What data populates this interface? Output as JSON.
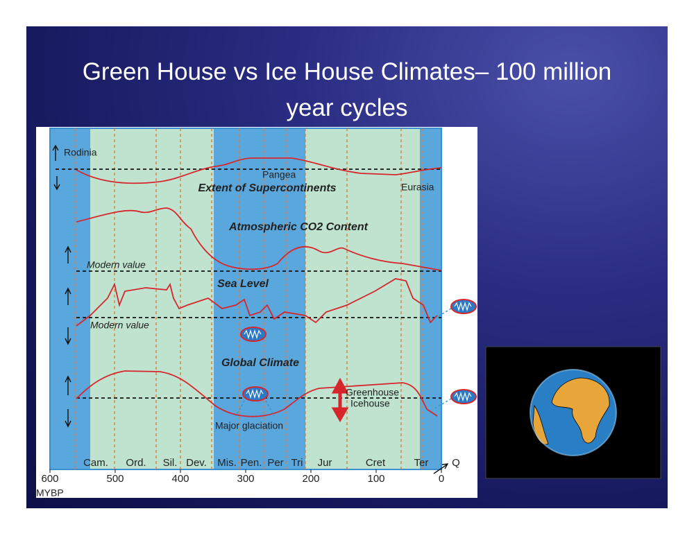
{
  "title": "Green House vs Ice House Climates– 100 million year cycles",
  "figure": {
    "xlim": [
      600,
      0
    ],
    "xticks": [
      600,
      500,
      400,
      300,
      200,
      100,
      0
    ],
    "xlabel": "MYBP",
    "periods": [
      "Cam.",
      "Ord.",
      "Sil.",
      "Dev.",
      "Mis.",
      "Pen.",
      "Per",
      "Tri",
      "Jur",
      "Cret",
      "Ter",
      "Q"
    ],
    "annotations": {
      "rodinia": "Rodinia",
      "pangea": "Pangea",
      "supercontinents": "Extent of Supercontinents",
      "eurasia": "Eurasia",
      "co2": "Atmospheric CO2 Content",
      "modern_co2": "Modern value",
      "sea_level": "Sea Level",
      "modern_sea": "Modern value",
      "climate": "Global Climate",
      "greenhouse": "Greenhouse",
      "icehouse": "Icehouse",
      "glaciation": "Major glaciation"
    }
  }
}
